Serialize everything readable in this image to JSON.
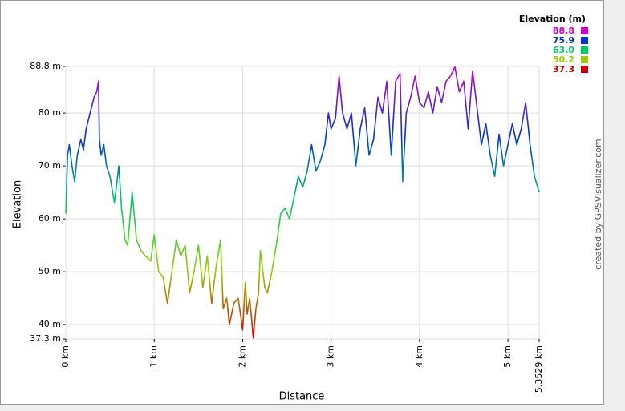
{
  "chart_data": {
    "type": "line",
    "xlabel": "Distance",
    "ylabel": "Elevation",
    "credit": "created by GPSVisualizer.com",
    "x": [
      0,
      0.02,
      0.04,
      0.07,
      0.1,
      0.13,
      0.17,
      0.2,
      0.23,
      0.26,
      0.29,
      0.32,
      0.35,
      0.37,
      0.38,
      0.4,
      0.43,
      0.46,
      0.5,
      0.55,
      0.6,
      0.63,
      0.67,
      0.7,
      0.75,
      0.8,
      0.85,
      0.9,
      0.96,
      1.0,
      1.05,
      1.1,
      1.15,
      1.2,
      1.25,
      1.3,
      1.35,
      1.4,
      1.45,
      1.5,
      1.55,
      1.6,
      1.65,
      1.7,
      1.75,
      1.78,
      1.82,
      1.85,
      1.9,
      1.95,
      2.0,
      2.03,
      2.05,
      2.08,
      2.12,
      2.15,
      2.18,
      2.2,
      2.25,
      2.28,
      2.33,
      2.38,
      2.43,
      2.48,
      2.53,
      2.58,
      2.63,
      2.68,
      2.73,
      2.78,
      2.83,
      2.88,
      2.93,
      2.97,
      3.0,
      3.05,
      3.09,
      3.13,
      3.18,
      3.23,
      3.28,
      3.33,
      3.38,
      3.43,
      3.48,
      3.53,
      3.58,
      3.63,
      3.68,
      3.73,
      3.78,
      3.81,
      3.85,
      3.9,
      3.95,
      4.0,
      4.05,
      4.1,
      4.15,
      4.2,
      4.25,
      4.3,
      4.35,
      4.4,
      4.45,
      4.5,
      4.55,
      4.6,
      4.65,
      4.7,
      4.75,
      4.8,
      4.85,
      4.9,
      4.95,
      5.0,
      5.05,
      5.1,
      5.15,
      5.2,
      5.25,
      5.3,
      5.3529
    ],
    "values": [
      61,
      72,
      74,
      70,
      67,
      72,
      75,
      73,
      77,
      79,
      81,
      83,
      84,
      86,
      75,
      72,
      74,
      70,
      68,
      63,
      70,
      62,
      56,
      55,
      65,
      56,
      54,
      53,
      52,
      57,
      50,
      49,
      44,
      50,
      56,
      53,
      55,
      46,
      50,
      55,
      47,
      53,
      44,
      51,
      56,
      43,
      45,
      40,
      44,
      45,
      39,
      48,
      42,
      45,
      37.5,
      43,
      46,
      54,
      47,
      46,
      50,
      55,
      61,
      62,
      60,
      64,
      68,
      66,
      69,
      74,
      69,
      71,
      74,
      80,
      77,
      79,
      87,
      80,
      77,
      80,
      70,
      77,
      81,
      72,
      75,
      83,
      80,
      86,
      72,
      86,
      87.5,
      67,
      80,
      83,
      87,
      82,
      81,
      84,
      80,
      85,
      82,
      86,
      87,
      88.7,
      84,
      86,
      77,
      88,
      81,
      74,
      78,
      72,
      68,
      76,
      70,
      74,
      78,
      74,
      77,
      82,
      74,
      68,
      65
    ],
    "xlim": [
      0,
      5.3529
    ],
    "ylim": [
      37.3,
      88.8
    ],
    "xticks": [
      {
        "value": 0,
        "label": "0 km"
      },
      {
        "value": 1,
        "label": "1 km"
      },
      {
        "value": 2,
        "label": "2 km"
      },
      {
        "value": 3,
        "label": "3 km"
      },
      {
        "value": 4,
        "label": "4 km"
      },
      {
        "value": 5,
        "label": "5 km"
      },
      {
        "value": 5.3529,
        "label": "5.3529 km"
      }
    ],
    "yticks": [
      {
        "value": 37.3,
        "label": "37.3 m"
      },
      {
        "value": 40,
        "label": "40 m"
      },
      {
        "value": 50,
        "label": "50 m"
      },
      {
        "value": 60,
        "label": "60 m"
      },
      {
        "value": 70,
        "label": "70 m"
      },
      {
        "value": 80,
        "label": "80 m"
      },
      {
        "value": 88.8,
        "label": "88.8 m"
      }
    ],
    "grid": true,
    "legend": {
      "title": "Elevation (m)",
      "values": [
        88.8,
        75.9,
        63,
        50.2,
        37.3
      ],
      "value_labels": [
        "88.8",
        "75.9",
        "63.0",
        "50.2",
        "37.3"
      ],
      "colors": [
        "#cc00cc",
        "#0033cc",
        "#00cc66",
        "#99cc00",
        "#cc0000"
      ]
    }
  }
}
